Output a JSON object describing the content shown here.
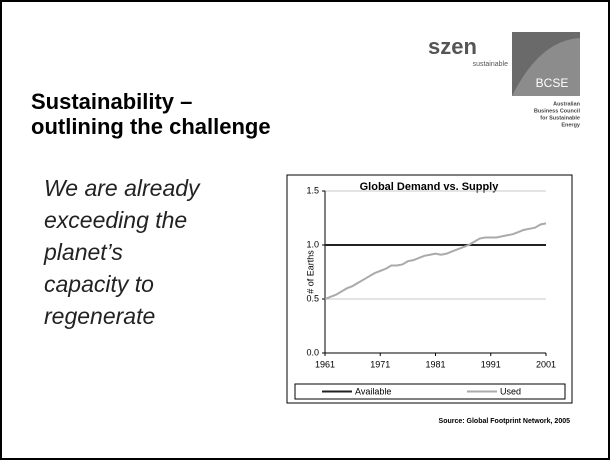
{
  "slide": {
    "title": [
      "Sustainability –",
      "outlining the challenge"
    ],
    "body": [
      "We are already",
      "exceeding the",
      "planet’s",
      "capacity to",
      "regenerate"
    ],
    "logo_szen": {
      "name": "szen",
      "tagline": "sustainable"
    },
    "logo_bcse": {
      "name": "BCSE",
      "lines": [
        "Australian",
        "Business Council",
        "for Sustainable",
        "Energy"
      ]
    },
    "source": "Source: Global Footprint Network, 2005"
  },
  "chart_data": {
    "type": "line",
    "title": "Global Demand vs. Supply",
    "y_label": "# of Earths",
    "x": [
      1961,
      1962,
      1963,
      1964,
      1965,
      1966,
      1967,
      1968,
      1969,
      1970,
      1971,
      1972,
      1973,
      1974,
      1975,
      1976,
      1977,
      1978,
      1979,
      1980,
      1981,
      1982,
      1983,
      1984,
      1985,
      1986,
      1987,
      1988,
      1989,
      1990,
      1991,
      1992,
      1993,
      1994,
      1995,
      1996,
      1997,
      1998,
      1999,
      2000,
      2001
    ],
    "series": [
      {
        "name": "Available",
        "color": "#222222",
        "values": [
          1,
          1,
          1,
          1,
          1,
          1,
          1,
          1,
          1,
          1,
          1,
          1,
          1,
          1,
          1,
          1,
          1,
          1,
          1,
          1,
          1,
          1,
          1,
          1,
          1,
          1,
          1,
          1,
          1,
          1,
          1,
          1,
          1,
          1,
          1,
          1,
          1,
          1,
          1,
          1,
          1
        ]
      },
      {
        "name": "Used",
        "color": "#aaaaaa",
        "values": [
          0.5,
          0.52,
          0.54,
          0.57,
          0.6,
          0.62,
          0.65,
          0.68,
          0.71,
          0.74,
          0.76,
          0.78,
          0.81,
          0.81,
          0.82,
          0.85,
          0.86,
          0.88,
          0.9,
          0.91,
          0.92,
          0.91,
          0.92,
          0.94,
          0.96,
          0.98,
          1.0,
          1.03,
          1.06,
          1.07,
          1.07,
          1.07,
          1.08,
          1.09,
          1.1,
          1.12,
          1.14,
          1.15,
          1.16,
          1.19,
          1.2
        ]
      }
    ],
    "xlim": [
      1961,
      2001
    ],
    "xticks": [
      1961,
      1971,
      1981,
      1991,
      2001
    ],
    "ylim": [
      0,
      1.5
    ],
    "yticks": [
      {
        "value": 0,
        "label": "0.0"
      },
      0.5,
      {
        "value": 1,
        "label": "1.0"
      },
      1.5
    ],
    "grid": true,
    "legend": "bottom"
  }
}
